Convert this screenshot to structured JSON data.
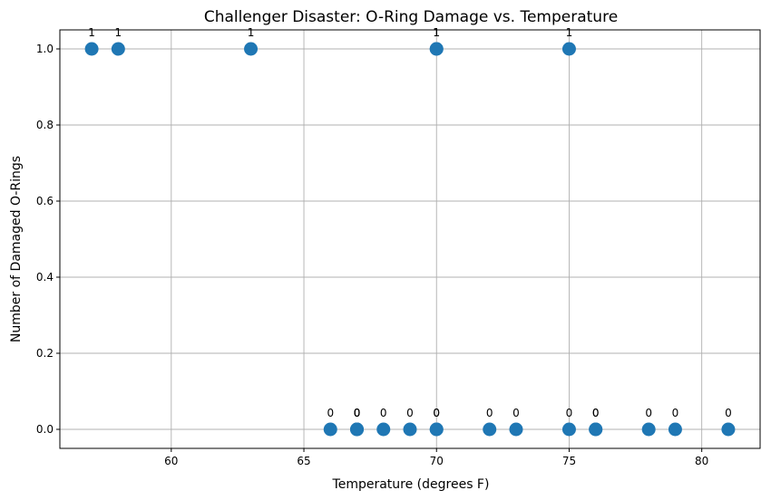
{
  "chart_data": {
    "type": "scatter",
    "title": "Challenger Disaster: O-Ring Damage vs. Temperature",
    "xlabel": "Temperature (degrees F)",
    "ylabel": "Number of Damaged O-Rings",
    "xlim": [
      55.8,
      82.2
    ],
    "ylim": [
      -0.05,
      1.05
    ],
    "xticks": [
      60,
      65,
      70,
      75,
      80
    ],
    "xtick_labels": [
      "60",
      "65",
      "70",
      "75",
      "80"
    ],
    "yticks": [
      0.0,
      0.2,
      0.4,
      0.6,
      0.8,
      1.0
    ],
    "ytick_labels": [
      "0.0",
      "0.2",
      "0.4",
      "0.6",
      "0.8",
      "1.0"
    ],
    "grid": true,
    "marker_color": "#1f77b4",
    "points": [
      {
        "x": 57,
        "y": 1,
        "label": "1"
      },
      {
        "x": 58,
        "y": 1,
        "label": "1"
      },
      {
        "x": 63,
        "y": 1,
        "label": "1"
      },
      {
        "x": 66,
        "y": 0,
        "label": "0"
      },
      {
        "x": 67,
        "y": 0,
        "label": "0"
      },
      {
        "x": 67,
        "y": 0,
        "label": "0"
      },
      {
        "x": 67,
        "y": 0,
        "label": "0"
      },
      {
        "x": 68,
        "y": 0,
        "label": "0"
      },
      {
        "x": 69,
        "y": 0,
        "label": "0"
      },
      {
        "x": 70,
        "y": 1,
        "label": "1"
      },
      {
        "x": 70,
        "y": 1,
        "label": "1"
      },
      {
        "x": 70,
        "y": 0,
        "label": "0"
      },
      {
        "x": 70,
        "y": 0,
        "label": "0"
      },
      {
        "x": 72,
        "y": 0,
        "label": "0"
      },
      {
        "x": 73,
        "y": 0,
        "label": "0"
      },
      {
        "x": 75,
        "y": 1,
        "label": "1"
      },
      {
        "x": 75,
        "y": 0,
        "label": "0"
      },
      {
        "x": 76,
        "y": 0,
        "label": "0"
      },
      {
        "x": 76,
        "y": 0,
        "label": "0"
      },
      {
        "x": 78,
        "y": 0,
        "label": "0"
      },
      {
        "x": 79,
        "y": 0,
        "label": "0"
      },
      {
        "x": 81,
        "y": 0,
        "label": "0"
      }
    ]
  }
}
